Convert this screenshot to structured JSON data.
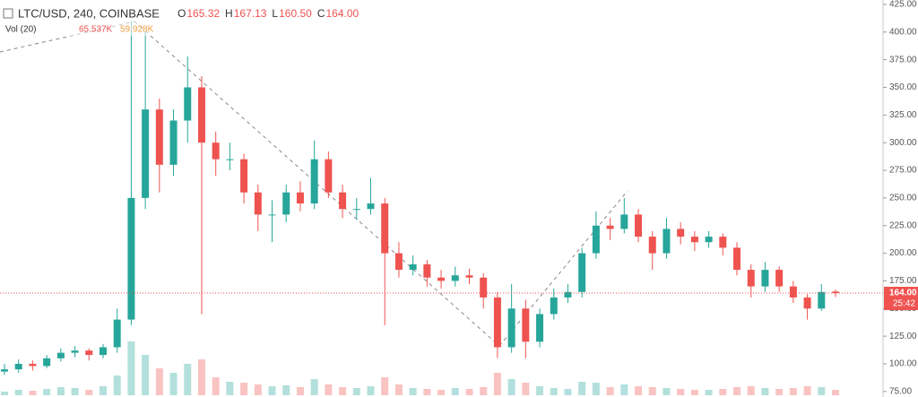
{
  "chart_data": {
    "type": "candlestick",
    "title": "LTC/USD, 240, COINBASE",
    "ohlc_legend": [
      {
        "key": "O",
        "value": "165.32"
      },
      {
        "key": "H",
        "value": "167.13"
      },
      {
        "key": "L",
        "value": "160.50"
      },
      {
        "key": "C",
        "value": "164.00"
      }
    ],
    "volume_legend": {
      "name": "Vol (20)",
      "values": [
        "65.537K",
        "59.928K"
      ]
    },
    "ylim": [
      70,
      429
    ],
    "yticks": [
      {
        "value": 75,
        "label": "75.00"
      },
      {
        "value": 100,
        "label": "100.00"
      },
      {
        "value": 125,
        "label": "125.00"
      },
      {
        "value": 150,
        "label": "150.00"
      },
      {
        "value": 175,
        "label": "175.00"
      },
      {
        "value": 200,
        "label": "200.00"
      },
      {
        "value": 225,
        "label": "225.00"
      },
      {
        "value": 250,
        "label": "250.00"
      },
      {
        "value": 275,
        "label": "275.00"
      },
      {
        "value": 300,
        "label": "300.00"
      },
      {
        "value": 325,
        "label": "325.00"
      },
      {
        "value": 350,
        "label": "350.00"
      },
      {
        "value": 375,
        "label": "375.00"
      },
      {
        "value": 400,
        "label": "400.00"
      },
      {
        "value": 425,
        "label": "425.00"
      }
    ],
    "last_price": {
      "value": 164,
      "label": "164.00"
    },
    "countdown": "25:42",
    "up_color": "#26a69a",
    "down_color": "#ef5350",
    "candles": [
      [
        93,
        100,
        90,
        95
      ],
      [
        95,
        104,
        92,
        100
      ],
      [
        100,
        103,
        94,
        98
      ],
      [
        98,
        108,
        96,
        105
      ],
      [
        105,
        114,
        102,
        110
      ],
      [
        110,
        116,
        106,
        112
      ],
      [
        112,
        114,
        103,
        108
      ],
      [
        108,
        118,
        105,
        115
      ],
      [
        115,
        150,
        110,
        140
      ],
      [
        140,
        410,
        135,
        250
      ],
      [
        250,
        400,
        240,
        330
      ],
      [
        330,
        340,
        255,
        280
      ],
      [
        280,
        330,
        270,
        320
      ],
      [
        320,
        378,
        300,
        350
      ],
      [
        350,
        360,
        145,
        300
      ],
      [
        300,
        310,
        270,
        285
      ],
      [
        285,
        300,
        275,
        285
      ],
      [
        285,
        290,
        245,
        255
      ],
      [
        255,
        262,
        220,
        235
      ],
      [
        235,
        248,
        210,
        235
      ],
      [
        235,
        262,
        228,
        255
      ],
      [
        255,
        265,
        238,
        245
      ],
      [
        245,
        302,
        240,
        285
      ],
      [
        285,
        292,
        250,
        255
      ],
      [
        255,
        262,
        232,
        240
      ],
      [
        240,
        250,
        230,
        240
      ],
      [
        240,
        268,
        235,
        245
      ],
      [
        245,
        250,
        135,
        200
      ],
      [
        200,
        210,
        178,
        185
      ],
      [
        185,
        198,
        180,
        190
      ],
      [
        190,
        194,
        170,
        178
      ],
      [
        178,
        185,
        168,
        175
      ],
      [
        175,
        188,
        170,
        180
      ],
      [
        180,
        186,
        172,
        178
      ],
      [
        178,
        182,
        150,
        160
      ],
      [
        160,
        165,
        105,
        115
      ],
      [
        115,
        172,
        110,
        150
      ],
      [
        150,
        158,
        105,
        120
      ],
      [
        120,
        150,
        115,
        145
      ],
      [
        145,
        168,
        140,
        160
      ],
      [
        160,
        172,
        155,
        165
      ],
      [
        165,
        205,
        160,
        200
      ],
      [
        200,
        238,
        195,
        225
      ],
      [
        225,
        232,
        212,
        222
      ],
      [
        222,
        250,
        218,
        235
      ],
      [
        235,
        240,
        210,
        215
      ],
      [
        215,
        220,
        185,
        200
      ],
      [
        200,
        232,
        195,
        222
      ],
      [
        222,
        228,
        208,
        215
      ],
      [
        215,
        220,
        202,
        210
      ],
      [
        210,
        220,
        205,
        215
      ],
      [
        215,
        218,
        198,
        205
      ],
      [
        205,
        210,
        180,
        185
      ],
      [
        185,
        190,
        160,
        170
      ],
      [
        170,
        192,
        165,
        185
      ],
      [
        185,
        188,
        165,
        170
      ],
      [
        170,
        175,
        155,
        160
      ],
      [
        160,
        163,
        140,
        150
      ],
      [
        150,
        172,
        148,
        165
      ],
      [
        165.32,
        167.13,
        160.5,
        164
      ]
    ],
    "volumes": [
      4,
      6,
      5,
      7,
      9,
      8,
      6,
      10,
      22,
      60,
      45,
      30,
      25,
      35,
      40,
      20,
      15,
      14,
      12,
      10,
      11,
      9,
      18,
      12,
      9,
      8,
      10,
      20,
      12,
      8,
      7,
      6,
      8,
      7,
      9,
      25,
      18,
      14,
      10,
      8,
      7,
      15,
      14,
      9,
      12,
      10,
      9,
      8,
      7,
      6,
      6,
      7,
      9,
      10,
      8,
      7,
      8,
      10,
      9,
      6
    ]
  }
}
